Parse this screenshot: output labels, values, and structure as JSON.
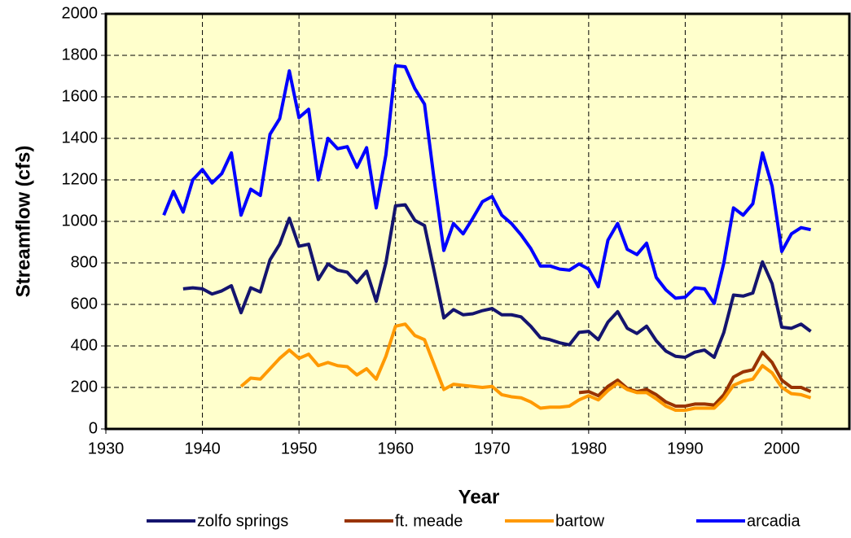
{
  "chart_data": {
    "type": "line",
    "x_label": "Year",
    "y_label": "Streamflow (cfs)",
    "xlim": [
      1930,
      2007
    ],
    "xticks": [
      1930,
      1940,
      1950,
      1960,
      1970,
      1980,
      1990,
      2000
    ],
    "ylim": [
      0,
      2000
    ],
    "yticks": [
      0,
      200,
      400,
      600,
      800,
      1000,
      1200,
      1400,
      1600,
      1800,
      2000
    ],
    "grid": true,
    "legend": "bottom",
    "x": [
      1936,
      1937,
      1938,
      1939,
      1940,
      1941,
      1942,
      1943,
      1944,
      1945,
      1946,
      1947,
      1948,
      1949,
      1950,
      1951,
      1952,
      1953,
      1954,
      1955,
      1956,
      1957,
      1958,
      1959,
      1960,
      1961,
      1962,
      1963,
      1964,
      1965,
      1966,
      1967,
      1968,
      1969,
      1970,
      1971,
      1972,
      1973,
      1974,
      1975,
      1976,
      1977,
      1978,
      1979,
      1980,
      1981,
      1982,
      1983,
      1984,
      1985,
      1986,
      1987,
      1988,
      1989,
      1990,
      1991,
      1992,
      1993,
      1994,
      1995,
      1996,
      1997,
      1998,
      1999,
      2000,
      2001,
      2002,
      2003
    ],
    "series": [
      {
        "name": "zolfo springs",
        "color": "#14146e",
        "values": [
          null,
          null,
          675,
          680,
          675,
          650,
          665,
          690,
          560,
          680,
          660,
          815,
          890,
          1015,
          880,
          890,
          720,
          795,
          765,
          755,
          705,
          760,
          615,
          800,
          1075,
          1080,
          1005,
          980,
          760,
          535,
          575,
          550,
          555,
          570,
          580,
          550,
          550,
          540,
          495,
          440,
          430,
          415,
          405,
          465,
          470,
          430,
          515,
          565,
          485,
          460,
          495,
          425,
          375,
          350,
          345,
          370,
          380,
          345,
          465,
          645,
          640,
          655,
          805,
          700,
          490,
          485,
          505,
          470
        ]
      },
      {
        "name": "ft. meade",
        "color": "#993300",
        "values": [
          null,
          null,
          null,
          null,
          null,
          null,
          null,
          null,
          null,
          null,
          null,
          null,
          null,
          null,
          null,
          null,
          null,
          null,
          null,
          null,
          null,
          null,
          null,
          null,
          null,
          null,
          null,
          null,
          null,
          null,
          null,
          null,
          null,
          null,
          null,
          null,
          null,
          null,
          null,
          null,
          null,
          null,
          null,
          175,
          180,
          160,
          205,
          235,
          195,
          180,
          190,
          165,
          130,
          110,
          110,
          120,
          120,
          115,
          165,
          250,
          275,
          285,
          370,
          320,
          235,
          200,
          200,
          180
        ]
      },
      {
        "name": "bartow",
        "color": "#ff9900",
        "values": [
          null,
          null,
          null,
          null,
          null,
          null,
          null,
          null,
          205,
          245,
          240,
          290,
          340,
          380,
          340,
          360,
          305,
          320,
          305,
          300,
          260,
          290,
          240,
          350,
          495,
          505,
          450,
          430,
          310,
          190,
          215,
          210,
          205,
          200,
          205,
          165,
          155,
          150,
          130,
          100,
          105,
          105,
          110,
          140,
          160,
          140,
          185,
          220,
          190,
          175,
          175,
          145,
          110,
          90,
          90,
          100,
          100,
          100,
          145,
          210,
          230,
          240,
          305,
          270,
          200,
          170,
          165,
          150
        ]
      },
      {
        "name": "arcadia",
        "color": "#0000ff",
        "values": [
          1030,
          1145,
          1045,
          1200,
          1250,
          1185,
          1230,
          1330,
          1030,
          1155,
          1125,
          1420,
          1495,
          1725,
          1500,
          1540,
          1200,
          1400,
          1350,
          1360,
          1260,
          1355,
          1065,
          1320,
          1750,
          1745,
          1640,
          1565,
          1200,
          860,
          990,
          940,
          1015,
          1095,
          1120,
          1030,
          990,
          935,
          870,
          785,
          785,
          770,
          765,
          795,
          770,
          685,
          910,
          990,
          865,
          840,
          895,
          730,
          670,
          630,
          635,
          680,
          675,
          605,
          800,
          1065,
          1030,
          1085,
          1330,
          1170,
          855,
          940,
          970,
          960
        ]
      }
    ]
  }
}
